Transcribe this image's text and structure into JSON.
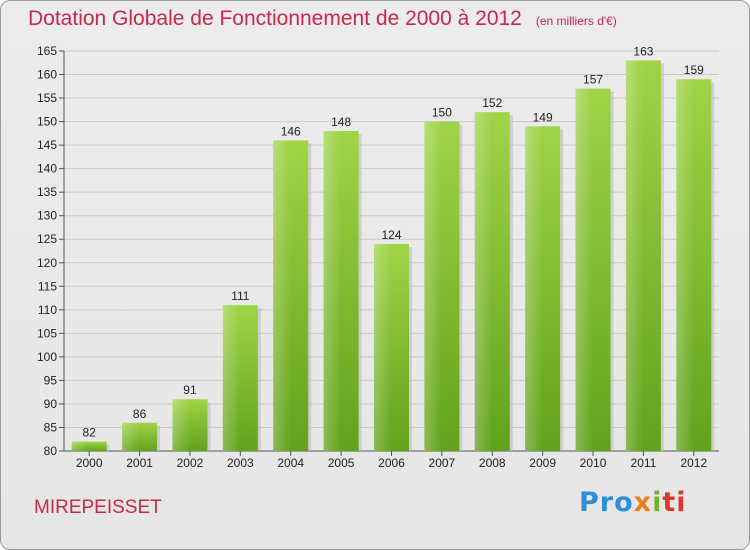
{
  "chart_data": {
    "type": "bar",
    "title": "Dotation Globale de Fonctionnement de 2000 à 2012",
    "subtitle": "(en milliers d'€)",
    "categories": [
      "2000",
      "2001",
      "2002",
      "2003",
      "2004",
      "2005",
      "2006",
      "2007",
      "2008",
      "2009",
      "2010",
      "2011",
      "2012"
    ],
    "values": [
      82,
      86,
      91,
      111,
      146,
      148,
      124,
      150,
      152,
      149,
      157,
      163,
      159
    ],
    "ylim": [
      80,
      165
    ],
    "yticks": [
      80,
      85,
      90,
      95,
      100,
      105,
      110,
      115,
      120,
      125,
      130,
      135,
      140,
      145,
      150,
      155,
      160,
      165
    ],
    "grid": true,
    "legend": "none",
    "bar_color": "#7cbf2f"
  },
  "footer": {
    "commune": "MIREPEISSET",
    "logo": [
      "Pro",
      "x",
      "i",
      "ti"
    ]
  }
}
